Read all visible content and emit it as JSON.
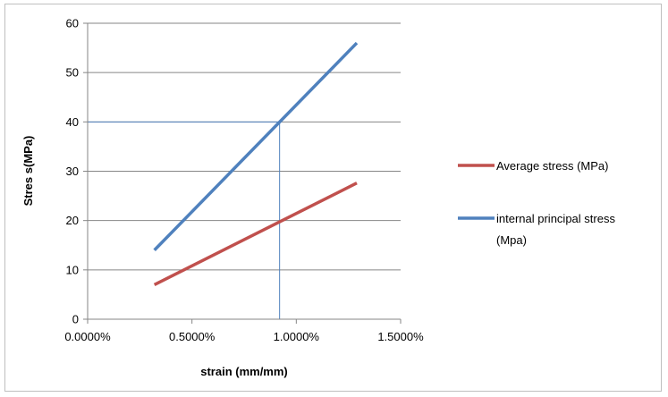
{
  "chart_data": {
    "type": "line",
    "title": "",
    "xlabel": "strain (mm/mm)",
    "ylabel": "Stres s(MPa)",
    "xlim": [
      0.0,
      0.015
    ],
    "ylim": [
      0,
      60
    ],
    "x_ticks": [
      "0.0000%",
      "0.5000%",
      "1.0000%",
      "1.5000%"
    ],
    "y_ticks": [
      "0",
      "10",
      "20",
      "30",
      "40",
      "50",
      "60"
    ],
    "grid": "horizontal",
    "legend_position": "right",
    "series": [
      {
        "name": "Average stress (MPa)",
        "color": "#c0504d",
        "x": [
          0.0032,
          0.0129
        ],
        "y": [
          7,
          27.6
        ]
      },
      {
        "name": "internal principal stress (Mpa)",
        "name_lines": [
          "internal principal stress",
          "(Mpa)"
        ],
        "color": "#4f81bd",
        "x": [
          0.0032,
          0.0129
        ],
        "y": [
          14,
          56
        ]
      }
    ],
    "reference_lines": {
      "color": "#4f81bd",
      "x": 0.0092,
      "y": 40
    }
  }
}
